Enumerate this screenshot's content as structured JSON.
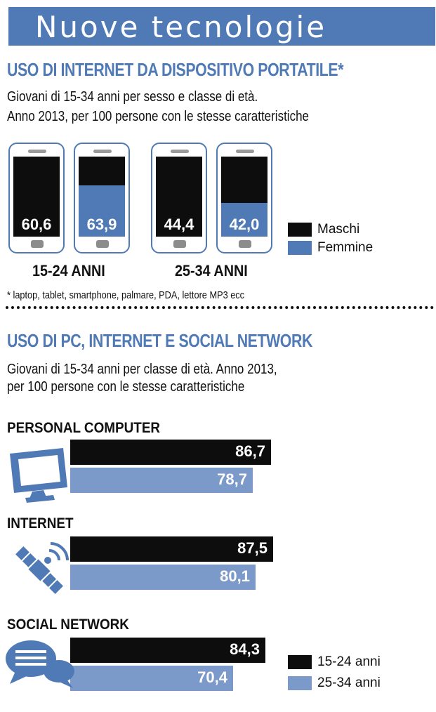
{
  "banner": {
    "title": "Nuove tecnologie",
    "color": "#4f7ab5"
  },
  "section1": {
    "title": "USO DI INTERNET DA DISPOSITIVO PORTATILE*",
    "subtitle_line1": "Giovani di 15-34 anni per sesso e classe di età.",
    "subtitle_line2": "Anno 2013, per 100 persone con le stesse caratteristiche",
    "footnote": "* laptop, tablet, smartphone, palmare, PDA, lettore MP3 ecc"
  },
  "section2": {
    "title": "USO DI PC, INTERNET E SOCIAL NETWORK",
    "subtitle_line1": "Giovani di 15-34 anni per classe di età. Anno 2013,",
    "subtitle_line2": "per 100 persone con le stesse caratteristiche"
  },
  "chart_data": [
    {
      "type": "bar",
      "title": "USO DI INTERNET DA DISPOSITIVO PORTATILE*",
      "categories": [
        "15-24 ANNI",
        "25-34 ANNI"
      ],
      "series": [
        {
          "name": "Maschi",
          "color": "#0d0d0d",
          "values": [
            60.6,
            44.4
          ],
          "labels": [
            "60,6",
            "44,4"
          ]
        },
        {
          "name": "Femmine",
          "color": "#4f7ab5",
          "values": [
            63.9,
            42.0
          ],
          "labels": [
            "63,9",
            "42,0"
          ]
        }
      ],
      "ylim": [
        0,
        100
      ],
      "legend": "right"
    },
    {
      "type": "bar",
      "title": "USO DI PC, INTERNET E SOCIAL NETWORK",
      "orientation": "horizontal",
      "categories": [
        "PERSONAL COMPUTER",
        "INTERNET",
        "SOCIAL NETWORK"
      ],
      "icons": [
        "monitor-icon",
        "satellite-icon",
        "speech-bubble-icon"
      ],
      "series": [
        {
          "name": "15-24 anni",
          "color": "#0d0d0d",
          "values": [
            86.7,
            87.5,
            84.3
          ],
          "labels": [
            "86,7",
            "87,5",
            "84,3"
          ]
        },
        {
          "name": "25-34 anni",
          "color": "#7b99c9",
          "values": [
            78.7,
            80.1,
            70.4
          ],
          "labels": [
            "78,7",
            "80,1",
            "70,4"
          ]
        }
      ],
      "xlim": [
        0,
        100
      ],
      "legend": "bottom-right"
    }
  ]
}
